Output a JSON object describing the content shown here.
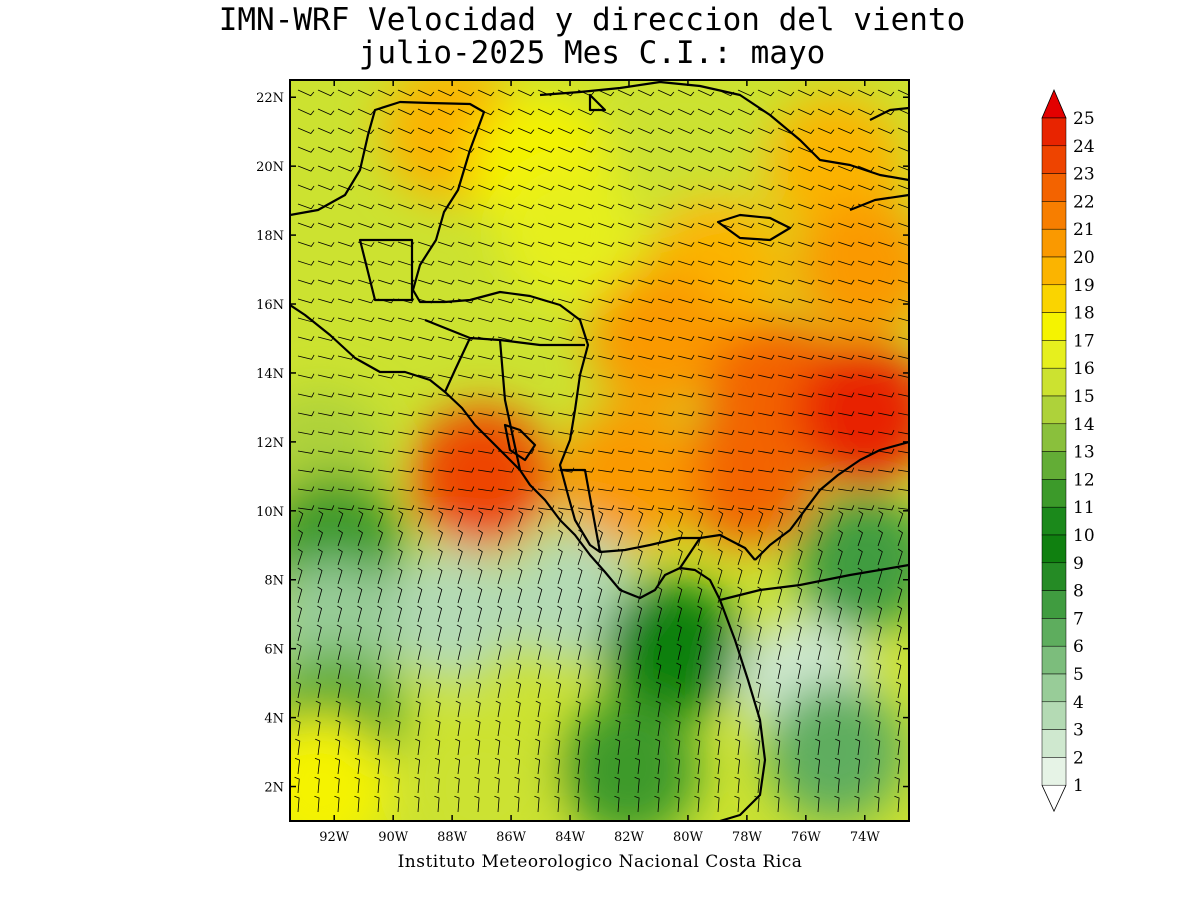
{
  "title": {
    "line1": "IMN-WRF Velocidad y direccion del viento",
    "line2": "julio-2025 Mes C.I.: mayo"
  },
  "credit": "Instituto Meteorologico Nacional Costa Rica",
  "map": {
    "lon_range": [
      -93.5,
      -72.5
    ],
    "lat_range": [
      1,
      22.5
    ],
    "lat_ticks": [
      {
        "value": 2,
        "label": "2N"
      },
      {
        "value": 4,
        "label": "4N"
      },
      {
        "value": 6,
        "label": "6N"
      },
      {
        "value": 8,
        "label": "8N"
      },
      {
        "value": 10,
        "label": "10N"
      },
      {
        "value": 12,
        "label": "12N"
      },
      {
        "value": 14,
        "label": "14N"
      },
      {
        "value": 16,
        "label": "16N"
      },
      {
        "value": 18,
        "label": "18N"
      },
      {
        "value": 20,
        "label": "20N"
      },
      {
        "value": 22,
        "label": "22N"
      }
    ],
    "lon_ticks": [
      {
        "value": -92,
        "label": "92W"
      },
      {
        "value": -90,
        "label": "90W"
      },
      {
        "value": -88,
        "label": "88W"
      },
      {
        "value": -86,
        "label": "86W"
      },
      {
        "value": -84,
        "label": "84W"
      },
      {
        "value": -82,
        "label": "82W"
      },
      {
        "value": -80,
        "label": "80W"
      },
      {
        "value": -78,
        "label": "78W"
      },
      {
        "value": -76,
        "label": "76W"
      },
      {
        "value": -74,
        "label": "74W"
      }
    ]
  },
  "colorbar": {
    "levels": [
      "1",
      "2",
      "3",
      "4",
      "5",
      "6",
      "7",
      "8",
      "9",
      "10",
      "11",
      "12",
      "13",
      "14",
      "15",
      "16",
      "17",
      "18",
      "19",
      "20",
      "21",
      "22",
      "23",
      "24",
      "25"
    ],
    "colors": [
      "#e6f3e6",
      "#cfe8cf",
      "#b4dab4",
      "#98cc98",
      "#7cbd7c",
      "#5ead5e",
      "#409c40",
      "#258b25",
      "#108010",
      "#1b891b",
      "#3c9a2a",
      "#63ad36",
      "#8ac03c",
      "#aed23a",
      "#cce230",
      "#e6ef1e",
      "#f5f300",
      "#fad400",
      "#fbb400",
      "#fa9900",
      "#f77e00",
      "#f36300",
      "#ee4400",
      "#e82400",
      "#e30000"
    ]
  },
  "wind_field": [
    {
      "lon": -88,
      "lat": 21,
      "speed": 19
    },
    {
      "lon": -85,
      "lat": 20,
      "speed": 17
    },
    {
      "lon": -80,
      "lat": 20,
      "speed": 15
    },
    {
      "lon": -75,
      "lat": 20,
      "speed": 19
    },
    {
      "lon": -84,
      "lat": 18,
      "speed": 16
    },
    {
      "lon": -79,
      "lat": 17,
      "speed": 19
    },
    {
      "lon": -74,
      "lat": 17,
      "speed": 20
    },
    {
      "lon": -81,
      "lat": 15,
      "speed": 20
    },
    {
      "lon": -77,
      "lat": 13.5,
      "speed": 22
    },
    {
      "lon": -74,
      "lat": 12.8,
      "speed": 24
    },
    {
      "lon": -78,
      "lat": 11,
      "speed": 22
    },
    {
      "lon": -82,
      "lat": 11,
      "speed": 20
    },
    {
      "lon": -92.5,
      "lat": 11.5,
      "speed": 14
    },
    {
      "lon": -87,
      "lat": 11,
      "speed": 23
    },
    {
      "lon": -92,
      "lat": 9,
      "speed": 11
    },
    {
      "lon": -84,
      "lat": 7.5,
      "speed": 3
    },
    {
      "lon": -80.5,
      "lat": 6,
      "speed": 9
    },
    {
      "lon": -88,
      "lat": 7,
      "speed": 3
    },
    {
      "lon": -92,
      "lat": 6.5,
      "speed": 4
    },
    {
      "lon": -92,
      "lat": 4,
      "speed": 12
    },
    {
      "lon": -92.5,
      "lat": 2,
      "speed": 17
    },
    {
      "lon": -87,
      "lat": 2,
      "speed": 15
    },
    {
      "lon": -82,
      "lat": 2.5,
      "speed": 11
    },
    {
      "lon": -76,
      "lat": 5,
      "speed": 2
    },
    {
      "lon": -75,
      "lat": 3,
      "speed": 6
    },
    {
      "lon": -74,
      "lat": 8.5,
      "speed": 7
    }
  ]
}
